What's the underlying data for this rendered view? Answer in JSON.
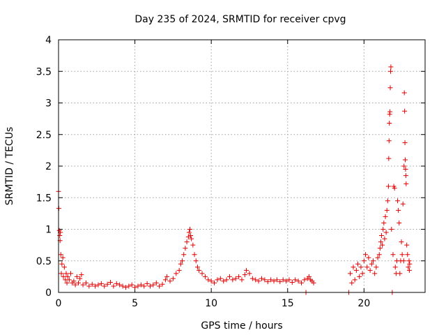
{
  "chart_data": {
    "type": "scatter",
    "title": "Day 235 of 2024, SRMTID for receiver cpvg",
    "xlabel": "GPS time / hours",
    "ylabel": "SRMTID / TECUs",
    "xlim": [
      0,
      24
    ],
    "ylim": [
      0,
      4
    ],
    "xticks": [
      0,
      5,
      10,
      15,
      20
    ],
    "xtick_labels": [
      "0",
      "5",
      "10",
      "15",
      "20"
    ],
    "yticks": [
      0,
      0.5,
      1,
      1.5,
      2,
      2.5,
      3,
      3.5,
      4
    ],
    "ytick_labels": [
      "0",
      "0.5",
      "1",
      "1.5",
      "2",
      "2.5",
      "3",
      "3.5",
      "4"
    ],
    "grid": true,
    "marker": "+",
    "color": "#e00000",
    "series": [
      {
        "name": "SRMTID",
        "points": [
          [
            0.0,
            1.6
          ],
          [
            0.02,
            1.33
          ],
          [
            0.05,
            0.98
          ],
          [
            0.08,
            0.9
          ],
          [
            0.1,
            0.82
          ],
          [
            0.12,
            0.95
          ],
          [
            0.15,
            0.6
          ],
          [
            0.18,
            0.3
          ],
          [
            0.22,
            0.45
          ],
          [
            0.28,
            0.55
          ],
          [
            0.32,
            0.25
          ],
          [
            0.38,
            0.4
          ],
          [
            0.45,
            0.2
          ],
          [
            0.5,
            0.3
          ],
          [
            0.55,
            0.15
          ],
          [
            0.6,
            0.25
          ],
          [
            0.7,
            0.2
          ],
          [
            0.8,
            0.3
          ],
          [
            0.9,
            0.15
          ],
          [
            1.0,
            0.18
          ],
          [
            1.1,
            0.12
          ],
          [
            1.2,
            0.25
          ],
          [
            1.3,
            0.15
          ],
          [
            1.4,
            0.22
          ],
          [
            1.5,
            0.28
          ],
          [
            1.6,
            0.12
          ],
          [
            1.8,
            0.15
          ],
          [
            2.0,
            0.1
          ],
          [
            2.2,
            0.13
          ],
          [
            2.4,
            0.1
          ],
          [
            2.6,
            0.12
          ],
          [
            2.8,
            0.14
          ],
          [
            3.0,
            0.1
          ],
          [
            3.2,
            0.13
          ],
          [
            3.4,
            0.16
          ],
          [
            3.6,
            0.1
          ],
          [
            3.8,
            0.14
          ],
          [
            4.0,
            0.12
          ],
          [
            4.2,
            0.1
          ],
          [
            4.4,
            0.08
          ],
          [
            4.6,
            0.1
          ],
          [
            4.8,
            0.12
          ],
          [
            5.0,
            0.08
          ],
          [
            5.2,
            0.1
          ],
          [
            5.4,
            0.12
          ],
          [
            5.6,
            0.1
          ],
          [
            5.8,
            0.14
          ],
          [
            6.0,
            0.1
          ],
          [
            6.2,
            0.12
          ],
          [
            6.4,
            0.15
          ],
          [
            6.6,
            0.1
          ],
          [
            6.8,
            0.13
          ],
          [
            7.0,
            0.2
          ],
          [
            7.1,
            0.25
          ],
          [
            7.3,
            0.18
          ],
          [
            7.5,
            0.22
          ],
          [
            7.7,
            0.3
          ],
          [
            7.9,
            0.35
          ],
          [
            8.0,
            0.45
          ],
          [
            8.1,
            0.5
          ],
          [
            8.2,
            0.6
          ],
          [
            8.3,
            0.7
          ],
          [
            8.4,
            0.8
          ],
          [
            8.5,
            0.88
          ],
          [
            8.55,
            0.95
          ],
          [
            8.6,
            1.0
          ],
          [
            8.65,
            0.9
          ],
          [
            8.7,
            0.85
          ],
          [
            8.8,
            0.75
          ],
          [
            8.9,
            0.6
          ],
          [
            9.0,
            0.5
          ],
          [
            9.1,
            0.4
          ],
          [
            9.2,
            0.35
          ],
          [
            9.4,
            0.3
          ],
          [
            9.6,
            0.25
          ],
          [
            9.8,
            0.2
          ],
          [
            10.0,
            0.18
          ],
          [
            10.2,
            0.15
          ],
          [
            10.4,
            0.2
          ],
          [
            10.6,
            0.22
          ],
          [
            10.8,
            0.18
          ],
          [
            11.0,
            0.2
          ],
          [
            11.2,
            0.25
          ],
          [
            11.4,
            0.2
          ],
          [
            11.6,
            0.22
          ],
          [
            11.8,
            0.25
          ],
          [
            12.0,
            0.2
          ],
          [
            12.2,
            0.28
          ],
          [
            12.3,
            0.35
          ],
          [
            12.5,
            0.3
          ],
          [
            12.7,
            0.22
          ],
          [
            12.9,
            0.2
          ],
          [
            13.1,
            0.18
          ],
          [
            13.3,
            0.22
          ],
          [
            13.5,
            0.2
          ],
          [
            13.7,
            0.17
          ],
          [
            13.9,
            0.2
          ],
          [
            14.1,
            0.18
          ],
          [
            14.3,
            0.2
          ],
          [
            14.5,
            0.17
          ],
          [
            14.7,
            0.2
          ],
          [
            14.9,
            0.18
          ],
          [
            15.1,
            0.2
          ],
          [
            15.3,
            0.16
          ],
          [
            15.5,
            0.2
          ],
          [
            15.7,
            0.18
          ],
          [
            15.9,
            0.15
          ],
          [
            16.1,
            0.2
          ],
          [
            16.2,
            0.0
          ],
          [
            16.3,
            0.22
          ],
          [
            16.4,
            0.25
          ],
          [
            16.5,
            0.2
          ],
          [
            16.6,
            0.18
          ],
          [
            16.7,
            0.15
          ],
          [
            19.0,
            0.0
          ],
          [
            19.1,
            0.3
          ],
          [
            19.2,
            0.15
          ],
          [
            19.3,
            0.4
          ],
          [
            19.4,
            0.2
          ],
          [
            19.5,
            0.35
          ],
          [
            19.6,
            0.45
          ],
          [
            19.7,
            0.25
          ],
          [
            19.8,
            0.4
          ],
          [
            19.9,
            0.3
          ],
          [
            20.0,
            0.5
          ],
          [
            20.1,
            0.6
          ],
          [
            20.2,
            0.4
          ],
          [
            20.3,
            0.55
          ],
          [
            20.4,
            0.35
          ],
          [
            20.5,
            0.45
          ],
          [
            20.6,
            0.5
          ],
          [
            20.7,
            0.3
          ],
          [
            20.8,
            0.4
          ],
          [
            20.9,
            0.55
          ],
          [
            21.0,
            0.6
          ],
          [
            21.05,
            0.7
          ],
          [
            21.1,
            0.8
          ],
          [
            21.15,
            0.9
          ],
          [
            21.2,
            0.75
          ],
          [
            21.25,
            1.0
          ],
          [
            21.3,
            1.1
          ],
          [
            21.35,
            0.85
          ],
          [
            21.4,
            1.2
          ],
          [
            21.45,
            0.95
          ],
          [
            21.5,
            1.3
          ],
          [
            21.55,
            1.45
          ],
          [
            21.6,
            1.68
          ],
          [
            21.62,
            2.12
          ],
          [
            21.64,
            2.4
          ],
          [
            21.66,
            2.68
          ],
          [
            21.68,
            2.82
          ],
          [
            21.7,
            2.86
          ],
          [
            21.72,
            3.24
          ],
          [
            21.74,
            3.5
          ],
          [
            21.76,
            3.57
          ],
          [
            21.8,
            1.0
          ],
          [
            21.85,
            0.0
          ],
          [
            21.9,
            0.6
          ],
          [
            21.95,
            1.68
          ],
          [
            22.0,
            1.65
          ],
          [
            22.05,
            0.4
          ],
          [
            22.1,
            0.3
          ],
          [
            22.15,
            0.5
          ],
          [
            22.2,
            1.45
          ],
          [
            22.25,
            1.3
          ],
          [
            22.3,
            1.1
          ],
          [
            22.35,
            0.3
          ],
          [
            22.4,
            0.5
          ],
          [
            22.45,
            0.8
          ],
          [
            22.5,
            0.6
          ],
          [
            22.55,
            1.4
          ],
          [
            22.6,
            0.5
          ],
          [
            22.62,
            2.0
          ],
          [
            22.64,
            3.16
          ],
          [
            22.66,
            2.87
          ],
          [
            22.68,
            2.37
          ],
          [
            22.7,
            2.1
          ],
          [
            22.72,
            1.95
          ],
          [
            22.74,
            1.85
          ],
          [
            22.76,
            1.72
          ],
          [
            22.8,
            0.75
          ],
          [
            22.85,
            0.6
          ],
          [
            22.9,
            0.4
          ],
          [
            22.95,
            0.5
          ],
          [
            22.97,
            0.35
          ],
          [
            22.99,
            0.45
          ]
        ]
      }
    ]
  }
}
